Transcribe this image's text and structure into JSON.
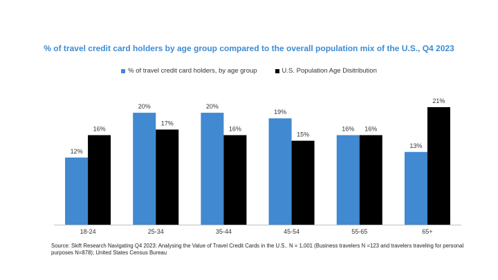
{
  "chart_data": {
    "type": "bar",
    "title": "% of travel credit card holders by age group compared to the overall population mix of the U.S., Q4 2023",
    "categories": [
      "18-24",
      "25-34",
      "35-44",
      "45-54",
      "55-65",
      "65+"
    ],
    "series": [
      {
        "name": "% of travel credit card holders, by age group",
        "values": [
          12,
          20,
          20,
          19,
          16,
          13
        ],
        "labels": [
          "12%",
          "20%",
          "20%",
          "19%",
          "16%",
          "13%"
        ],
        "color": "#4189d0"
      },
      {
        "name": "U.S. Population Age Disitribution",
        "values": [
          16,
          17,
          16,
          15,
          16,
          21
        ],
        "labels": [
          "16%",
          "17%",
          "16%",
          "15%",
          "16%",
          "21%"
        ],
        "color": "#000000"
      }
    ],
    "ylim": [
      0,
      21.5
    ],
    "grid": false,
    "legend_position": "top"
  },
  "source_text": "Source: Skift Research Navigating Q4 2023: Analysing the Value of Travel Credit Cards in the U.S.. N = 1,001 (Business travelers N =123 and travelers traveling for personal purposes N=878); United States Census Bureau"
}
